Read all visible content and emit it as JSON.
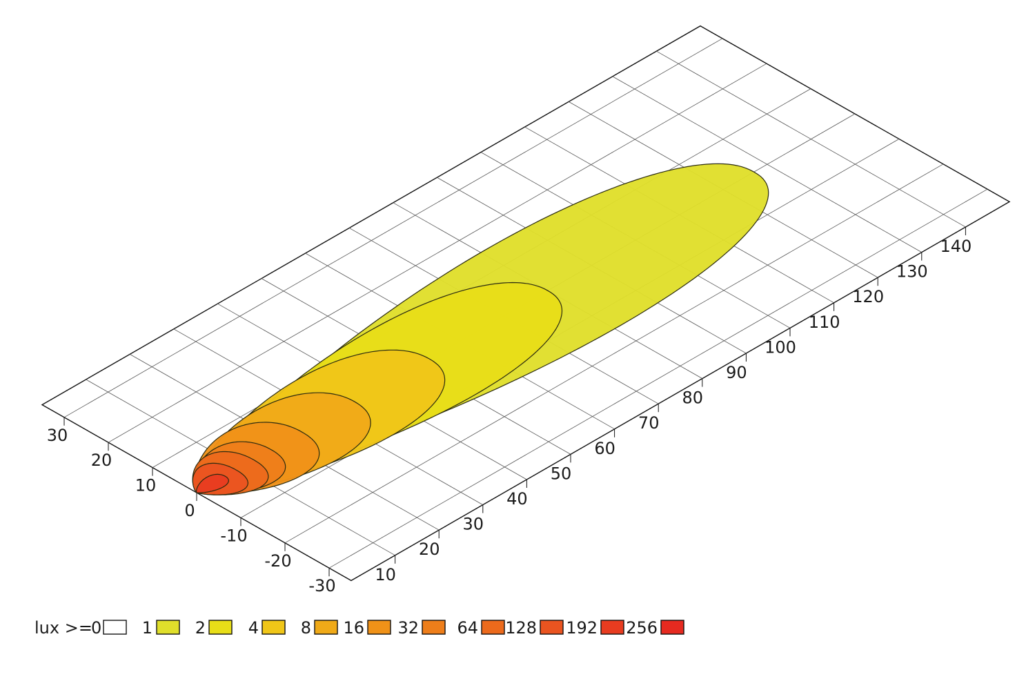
{
  "chart_data": {
    "type": "heatmap",
    "title": "",
    "xlabel": "",
    "ylabel": "",
    "x_ticks": [
      10,
      20,
      30,
      40,
      50,
      60,
      70,
      80,
      90,
      100,
      110,
      120,
      130,
      140
    ],
    "y_ticks": [
      30,
      20,
      10,
      0,
      -10,
      -20,
      -30
    ],
    "x_range": [
      0,
      150
    ],
    "y_range": [
      -35,
      35
    ],
    "grid": true,
    "legend_position": "bottom-left",
    "legend_prefix": "lux >= ",
    "levels": [
      {
        "value": "0",
        "color": "#ffffff"
      },
      {
        "value": "1",
        "color": "#e0df2b"
      },
      {
        "value": "2",
        "color": "#e8de18"
      },
      {
        "value": "4",
        "color": "#f0c618"
      },
      {
        "value": "8",
        "color": "#f0aa18"
      },
      {
        "value": "16",
        "color": "#f09218"
      },
      {
        "value": "32",
        "color": "#ee7e1a"
      },
      {
        "value": "64",
        "color": "#ec6a1c"
      },
      {
        "value": "128",
        "color": "#ea5420"
      },
      {
        "value": "192",
        "color": "#e83c20"
      },
      {
        "value": "256",
        "color": "#e62a20"
      }
    ],
    "contours": [
      {
        "level": "1",
        "reach": 127,
        "half_width": 16,
        "color": "#e0df2b"
      },
      {
        "level": "2",
        "reach": 80,
        "half_width": 13,
        "color": "#e8de18"
      },
      {
        "level": "4",
        "reach": 53,
        "half_width": 11.5,
        "color": "#f0c618"
      },
      {
        "level": "8",
        "reach": 36,
        "half_width": 10,
        "color": "#f0aa18"
      },
      {
        "level": "16",
        "reach": 24,
        "half_width": 9,
        "color": "#f09218"
      },
      {
        "level": "32",
        "reach": 17,
        "half_width": 7,
        "color": "#ee7e1a"
      },
      {
        "level": "64",
        "reach": 13,
        "half_width": 6.5,
        "color": "#ec6a1c"
      },
      {
        "level": "128",
        "reach": 9,
        "half_width": 5,
        "color": "#ea5420"
      },
      {
        "level": "192",
        "reach": 6.5,
        "half_width": 2,
        "color": "#e83c20"
      }
    ]
  }
}
